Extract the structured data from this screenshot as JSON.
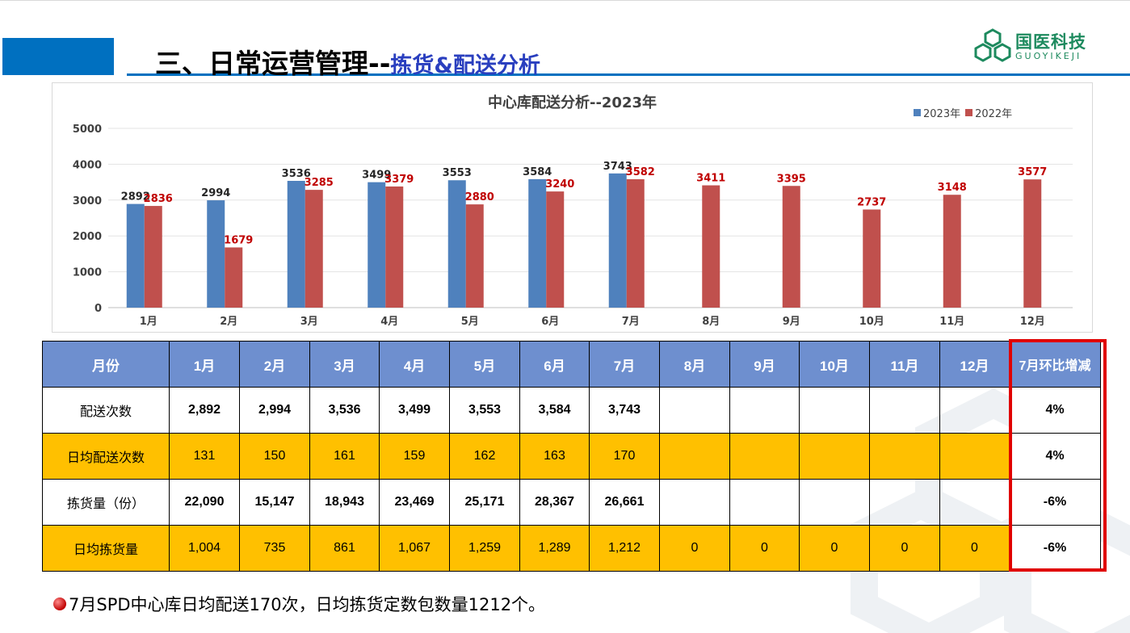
{
  "header": {
    "title_main": "三、日常运营管理--",
    "title_sub": "拣货&配送分析",
    "logo_cn": "国医科技",
    "logo_en": "GUOYIKEJI"
  },
  "colors": {
    "accent_blue": "#0070c0",
    "series_2023": "#4f81bd",
    "series_2022": "#c0504d",
    "label_2022": "#c00000",
    "table_header": "#6e8fcf",
    "table_highlight": "#ffc000",
    "frame_red": "#e00000"
  },
  "chart_data": {
    "type": "bar",
    "title": "中心库配送分析--2023年",
    "categories": [
      "1月",
      "2月",
      "3月",
      "4月",
      "5月",
      "6月",
      "7月",
      "8月",
      "9月",
      "10月",
      "11月",
      "12月"
    ],
    "series": [
      {
        "name": "2023年",
        "values": [
          2892,
          2994,
          3536,
          3499,
          3553,
          3584,
          3743,
          null,
          null,
          null,
          null,
          null
        ]
      },
      {
        "name": "2022年",
        "values": [
          2836,
          1679,
          3285,
          3379,
          2880,
          3240,
          3582,
          3411,
          3395,
          2737,
          3148,
          3577
        ]
      }
    ],
    "ylim": [
      0,
      5000
    ],
    "yticks": [
      0,
      1000,
      2000,
      3000,
      4000,
      5000
    ],
    "grid": true,
    "legend": "top-right"
  },
  "table": {
    "headers": [
      "月份",
      "1月",
      "2月",
      "3月",
      "4月",
      "5月",
      "6月",
      "7月",
      "8月",
      "9月",
      "10月",
      "11月",
      "12月",
      "7月环比增减"
    ],
    "rows": [
      {
        "label": "配送次数",
        "values": [
          "2,892",
          "2,994",
          "3,536",
          "3,499",
          "3,553",
          "3,584",
          "3,743",
          "",
          "",
          "",
          "",
          ""
        ],
        "change": "4%"
      },
      {
        "label": "日均配送次数",
        "values": [
          "131",
          "150",
          "161",
          "159",
          "162",
          "163",
          "170",
          "",
          "",
          "",
          "",
          ""
        ],
        "change": "4%"
      },
      {
        "label": "拣货量（份）",
        "values": [
          "22,090",
          "15,147",
          "18,943",
          "23,469",
          "25,171",
          "28,367",
          "26,661",
          "",
          "",
          "",
          "",
          ""
        ],
        "change": "-6%"
      },
      {
        "label": "日均拣货量",
        "values": [
          "1,004",
          "735",
          "861",
          "1,067",
          "1,259",
          "1,289",
          "1,212",
          "0",
          "0",
          "0",
          "0",
          "0"
        ],
        "change": "-6%"
      }
    ]
  },
  "footnote": "7月SPD中心库日均配送170次，日均拣货定数包数量1212个。"
}
